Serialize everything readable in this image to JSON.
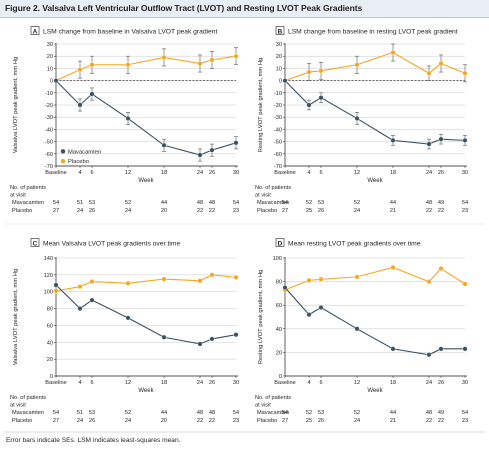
{
  "figure": {
    "title": "Figure 2. Valsalva Left Ventricular Outflow Tract (LVOT) and Resting LVOT Peak Gradients",
    "footnote": "Error bars indicate SEs. LSM indicates least-squares mean."
  },
  "colors": {
    "mavacamten": "#3b5262",
    "placebo": "#f5a623",
    "grid": "#c9c9c9",
    "axis": "#231f20"
  },
  "legend": {
    "items": [
      "Mavacamten",
      "Placebo"
    ]
  },
  "table_labels": {
    "header_line1": "No. of patients",
    "header_line2": "at visit",
    "row1": "Mavacamten",
    "row2": "Placebo"
  },
  "chart_data": [
    {
      "id": "A",
      "type": "line",
      "letter": "A",
      "title": "LSM change from baseline in Valsalva LVOT peak gradient",
      "ylabel": "Valsalva LVOT peak gradient, mm Hg",
      "xlabel": "Week",
      "ylim": [
        -70,
        30
      ],
      "yticks": [
        30,
        20,
        10,
        0,
        -10,
        -20,
        -30,
        -40,
        -50,
        -60,
        -70
      ],
      "zero_line": true,
      "x": [
        0,
        4,
        6,
        12,
        18,
        24,
        26,
        30
      ],
      "xticklabels": [
        "Baseline",
        "4",
        "6",
        "12",
        "18",
        "24",
        "26",
        "30"
      ],
      "error_bars": true,
      "series": [
        {
          "name": "Mavacamten",
          "values": [
            0,
            -20,
            -11,
            -31,
            -53,
            -61,
            -57,
            -51
          ],
          "errors": [
            0,
            5,
            5,
            5,
            5,
            5,
            5,
            5
          ]
        },
        {
          "name": "Placebo",
          "values": [
            0,
            9,
            13,
            13,
            19,
            14,
            17,
            20
          ],
          "errors": [
            0,
            7,
            7,
            7,
            7,
            7,
            7,
            7
          ]
        }
      ],
      "patients": {
        "mavacamten": [
          "54",
          "51",
          "53",
          "52",
          "44",
          "48",
          "48",
          "54"
        ],
        "placebo": [
          "27",
          "24",
          "26",
          "24",
          "20",
          "22",
          "22",
          "23"
        ]
      }
    },
    {
      "id": "B",
      "type": "line",
      "letter": "B",
      "title": "LSM change from baseline in resting LVOT peak gradient",
      "ylabel": "Resting LVOT peak gradient, mm Hg",
      "xlabel": "Week",
      "ylim": [
        -70,
        30
      ],
      "yticks": [
        30,
        20,
        10,
        0,
        -10,
        -20,
        -30,
        -40,
        -50,
        -60,
        -70
      ],
      "zero_line": true,
      "x": [
        0,
        4,
        6,
        12,
        18,
        24,
        26,
        30
      ],
      "xticklabels": [
        "Baseline",
        "4",
        "6",
        "12",
        "18",
        "24",
        "26",
        "30"
      ],
      "error_bars": true,
      "series": [
        {
          "name": "Mavacamten",
          "values": [
            0,
            -20,
            -14,
            -31,
            -49,
            -52,
            -48,
            -49
          ],
          "errors": [
            0,
            4,
            4,
            5,
            4,
            4,
            4,
            4
          ]
        },
        {
          "name": "Placebo",
          "values": [
            0,
            7,
            8,
            13,
            23,
            6,
            14,
            6
          ],
          "errors": [
            0,
            7,
            7,
            7,
            7,
            6,
            7,
            7
          ]
        }
      ],
      "patients": {
        "mavacamten": [
          "54",
          "52",
          "53",
          "52",
          "44",
          "48",
          "49",
          "54"
        ],
        "placebo": [
          "27",
          "25",
          "26",
          "24",
          "21",
          "22",
          "22",
          "23"
        ]
      }
    },
    {
      "id": "C",
      "type": "line",
      "letter": "C",
      "title": "Mean Valsalva LVOT peak gradients over time",
      "ylabel": "Valsalva LVOT peak gradient, mm Hg",
      "xlabel": "Week",
      "ylim": [
        0,
        140
      ],
      "yticks": [
        140,
        120,
        100,
        80,
        60,
        40,
        20,
        0
      ],
      "zero_line": false,
      "x": [
        0,
        4,
        6,
        12,
        18,
        24,
        26,
        30
      ],
      "xticklabels": [
        "Baseline",
        "4",
        "6",
        "12",
        "18",
        "24",
        "26",
        "30"
      ],
      "error_bars": false,
      "series": [
        {
          "name": "Mavacamten",
          "values": [
            108,
            80,
            90,
            69,
            46,
            38,
            44,
            49
          ]
        },
        {
          "name": "Placebo",
          "values": [
            101,
            106,
            112,
            110,
            115,
            113,
            120,
            117
          ]
        }
      ],
      "patients": {
        "mavacamten": [
          "54",
          "51",
          "53",
          "52",
          "44",
          "48",
          "48",
          "54"
        ],
        "placebo": [
          "27",
          "24",
          "26",
          "24",
          "20",
          "22",
          "22",
          "23"
        ]
      }
    },
    {
      "id": "D",
      "type": "line",
      "letter": "D",
      "title": "Mean resting LVOT peak gradients over time",
      "ylabel": "Resting LVOT peak gradient, mm Hg",
      "xlabel": "Week",
      "ylim": [
        0,
        100
      ],
      "yticks": [
        100,
        80,
        60,
        40,
        20,
        0
      ],
      "zero_line": false,
      "x": [
        0,
        4,
        6,
        12,
        18,
        24,
        26,
        30
      ],
      "xticklabels": [
        "Baseline",
        "4",
        "6",
        "12",
        "18",
        "24",
        "26",
        "30"
      ],
      "error_bars": false,
      "series": [
        {
          "name": "Mavacamten",
          "values": [
            75,
            52,
            58,
            40,
            23,
            18,
            23,
            23
          ]
        },
        {
          "name": "Placebo",
          "values": [
            73,
            81,
            82,
            84,
            92,
            80,
            91,
            78
          ]
        }
      ],
      "patients": {
        "mavacamten": [
          "54",
          "52",
          "53",
          "52",
          "44",
          "48",
          "49",
          "54"
        ],
        "placebo": [
          "27",
          "25",
          "26",
          "24",
          "21",
          "22",
          "22",
          "23"
        ]
      }
    }
  ]
}
